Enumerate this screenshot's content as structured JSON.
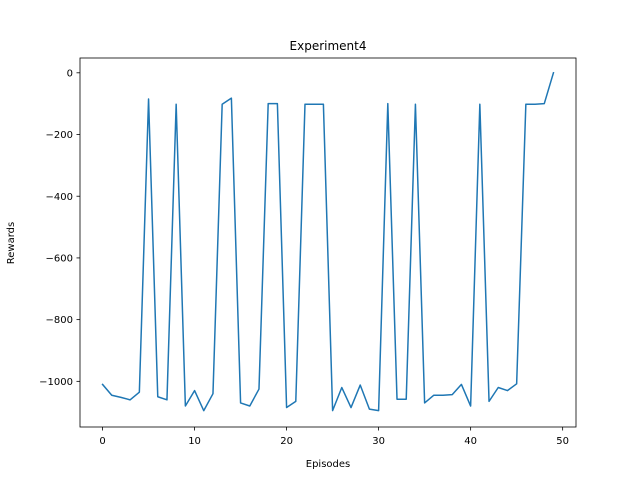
{
  "chart_data": {
    "type": "line",
    "title": "Experiment4",
    "xlabel": "Episodes",
    "ylabel": "Rewards",
    "xlim": [
      -2.45,
      51.45
    ],
    "ylim": [
      -1148,
      48
    ],
    "xticks": [
      0,
      10,
      20,
      30,
      40,
      50
    ],
    "yticks": [
      0,
      -200,
      -400,
      -600,
      -800,
      -1000
    ],
    "xtick_labels": [
      "0",
      "10",
      "20",
      "30",
      "40",
      "50"
    ],
    "ytick_labels": [
      "0",
      "−200",
      "−400",
      "−600",
      "−800",
      "−1000"
    ],
    "grid": false,
    "line_color": "#1f77b4",
    "series": [
      {
        "x": [
          0,
          1,
          2,
          3,
          4,
          5,
          6,
          7,
          8,
          9,
          10,
          11,
          12,
          13,
          14,
          15,
          16,
          17,
          18,
          19,
          20,
          21,
          22,
          23,
          24,
          25,
          26,
          27,
          28,
          29,
          30,
          31,
          32,
          33,
          34,
          35,
          36,
          37,
          38,
          39,
          40,
          41,
          42,
          43,
          44,
          45,
          46,
          47,
          48,
          49
        ],
        "values": [
          -1010,
          -1045,
          -1052,
          -1060,
          -1035,
          -85,
          -1050,
          -1060,
          -102,
          -1080,
          -1030,
          -1095,
          -1040,
          -102,
          -82,
          -1070,
          -1080,
          -1025,
          -100,
          -100,
          -1085,
          -1065,
          -102,
          -102,
          -102,
          -1095,
          -1020,
          -1085,
          -1012,
          -1090,
          -1095,
          -100,
          -1058,
          -1058,
          -102,
          -1070,
          -1045,
          -1045,
          -1043,
          -1010,
          -1080,
          -102,
          -1065,
          -1020,
          -1030,
          -1008,
          -102,
          -102,
          -100,
          0
        ]
      }
    ]
  }
}
